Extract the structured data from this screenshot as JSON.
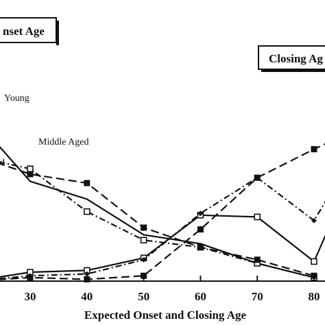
{
  "chart_data": {
    "type": "line",
    "title_boxes": {
      "onset": "nset Age",
      "closing": "Closing Ag"
    },
    "xlabel": "Expected Onset and Closing Age",
    "ylabel": "",
    "x_ticks": [
      30,
      40,
      50,
      60,
      70,
      80
    ],
    "xlim": [
      20,
      84
    ],
    "ylim": [
      0,
      100
    ],
    "grid": false,
    "series_labels": [
      {
        "key": "young",
        "text": "Young"
      },
      {
        "key": "middle",
        "text": "Middle Aged"
      },
      {
        "key": "old",
        "text": "d"
      }
    ],
    "series": [
      {
        "key": "young_onset",
        "curve": "onset",
        "line": "solid",
        "marker": "none",
        "x": [
          20,
          30,
          40,
          50,
          60,
          70,
          80
        ],
        "y": [
          92,
          56,
          46,
          26,
          21,
          10,
          2
        ]
      },
      {
        "key": "middle_onset",
        "curve": "onset",
        "line": "dashdot",
        "marker": "open-square",
        "x": [
          20,
          30,
          40,
          50,
          60,
          70,
          80
        ],
        "y": [
          70,
          63,
          39,
          23,
          19,
          10,
          2
        ]
      },
      {
        "key": "old_onset",
        "curve": "onset",
        "line": "dashed",
        "marker": "filled-square",
        "x": [
          20,
          30,
          40,
          50,
          60,
          70,
          80
        ],
        "y": [
          71,
          60,
          55,
          30,
          19,
          12,
          3
        ]
      },
      {
        "key": "young_closing",
        "curve": "closing",
        "line": "solid",
        "marker": "open-square",
        "x": [
          20,
          30,
          40,
          50,
          60,
          70,
          80,
          84
        ],
        "y": [
          0,
          5,
          6,
          13,
          37,
          36,
          11,
          40
        ]
      },
      {
        "key": "middle_closing",
        "curve": "closing",
        "line": "dashdot",
        "marker": "filled-diamond",
        "x": [
          20,
          30,
          40,
          50,
          60,
          70,
          80,
          84
        ],
        "y": [
          0,
          3,
          4,
          12,
          38,
          58,
          34,
          55
        ]
      },
      {
        "key": "old_closing",
        "curve": "closing",
        "line": "dashed",
        "marker": "filled-square",
        "x": [
          20,
          30,
          40,
          50,
          60,
          70,
          80,
          84
        ],
        "y": [
          0,
          2,
          1,
          3,
          29,
          58,
          74,
          80
        ]
      }
    ]
  }
}
